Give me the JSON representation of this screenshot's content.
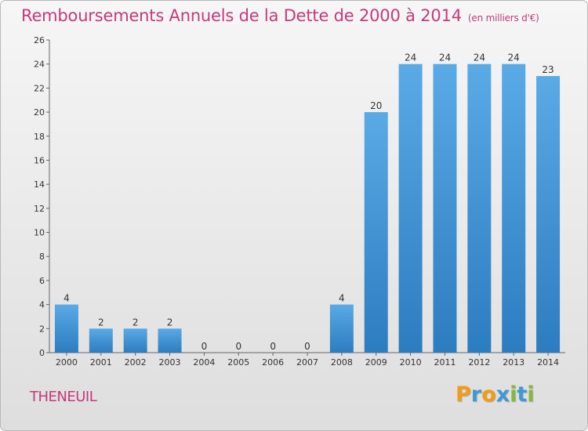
{
  "header": {
    "title": "Remboursements Annuels de la Dette de 2000 à 2014",
    "unit": "(en milliers d'€)"
  },
  "footer": {
    "commune": "THENEUIL",
    "logo": [
      "P",
      "r",
      "o",
      "x",
      "i",
      "t",
      "i"
    ]
  },
  "colors": {
    "title": "#c43a7a",
    "bar_top": "#5aaae6",
    "bar_bottom": "#2c7cc0",
    "logo": [
      "#f39c12",
      "#3c9ad4",
      "#f39c12",
      "#3c9ad4",
      "#86b83c",
      "#3c9ad4",
      "#86b83c"
    ]
  },
  "chart_data": {
    "type": "bar",
    "title": "Remboursements Annuels de la Dette de 2000 à 2014",
    "xlabel": "",
    "ylabel": "",
    "categories": [
      "2000",
      "2001",
      "2002",
      "2003",
      "2004",
      "2005",
      "2006",
      "2007",
      "2008",
      "2009",
      "2010",
      "2011",
      "2012",
      "2013",
      "2014"
    ],
    "values": [
      4,
      2,
      2,
      2,
      0,
      0,
      0,
      0,
      4,
      20,
      24,
      24,
      24,
      24,
      23
    ],
    "ylim": [
      0,
      26
    ],
    "yticks": [
      0,
      2,
      4,
      6,
      8,
      10,
      12,
      14,
      16,
      18,
      20,
      22,
      24,
      26
    ],
    "grid": false,
    "data_labels": true
  }
}
